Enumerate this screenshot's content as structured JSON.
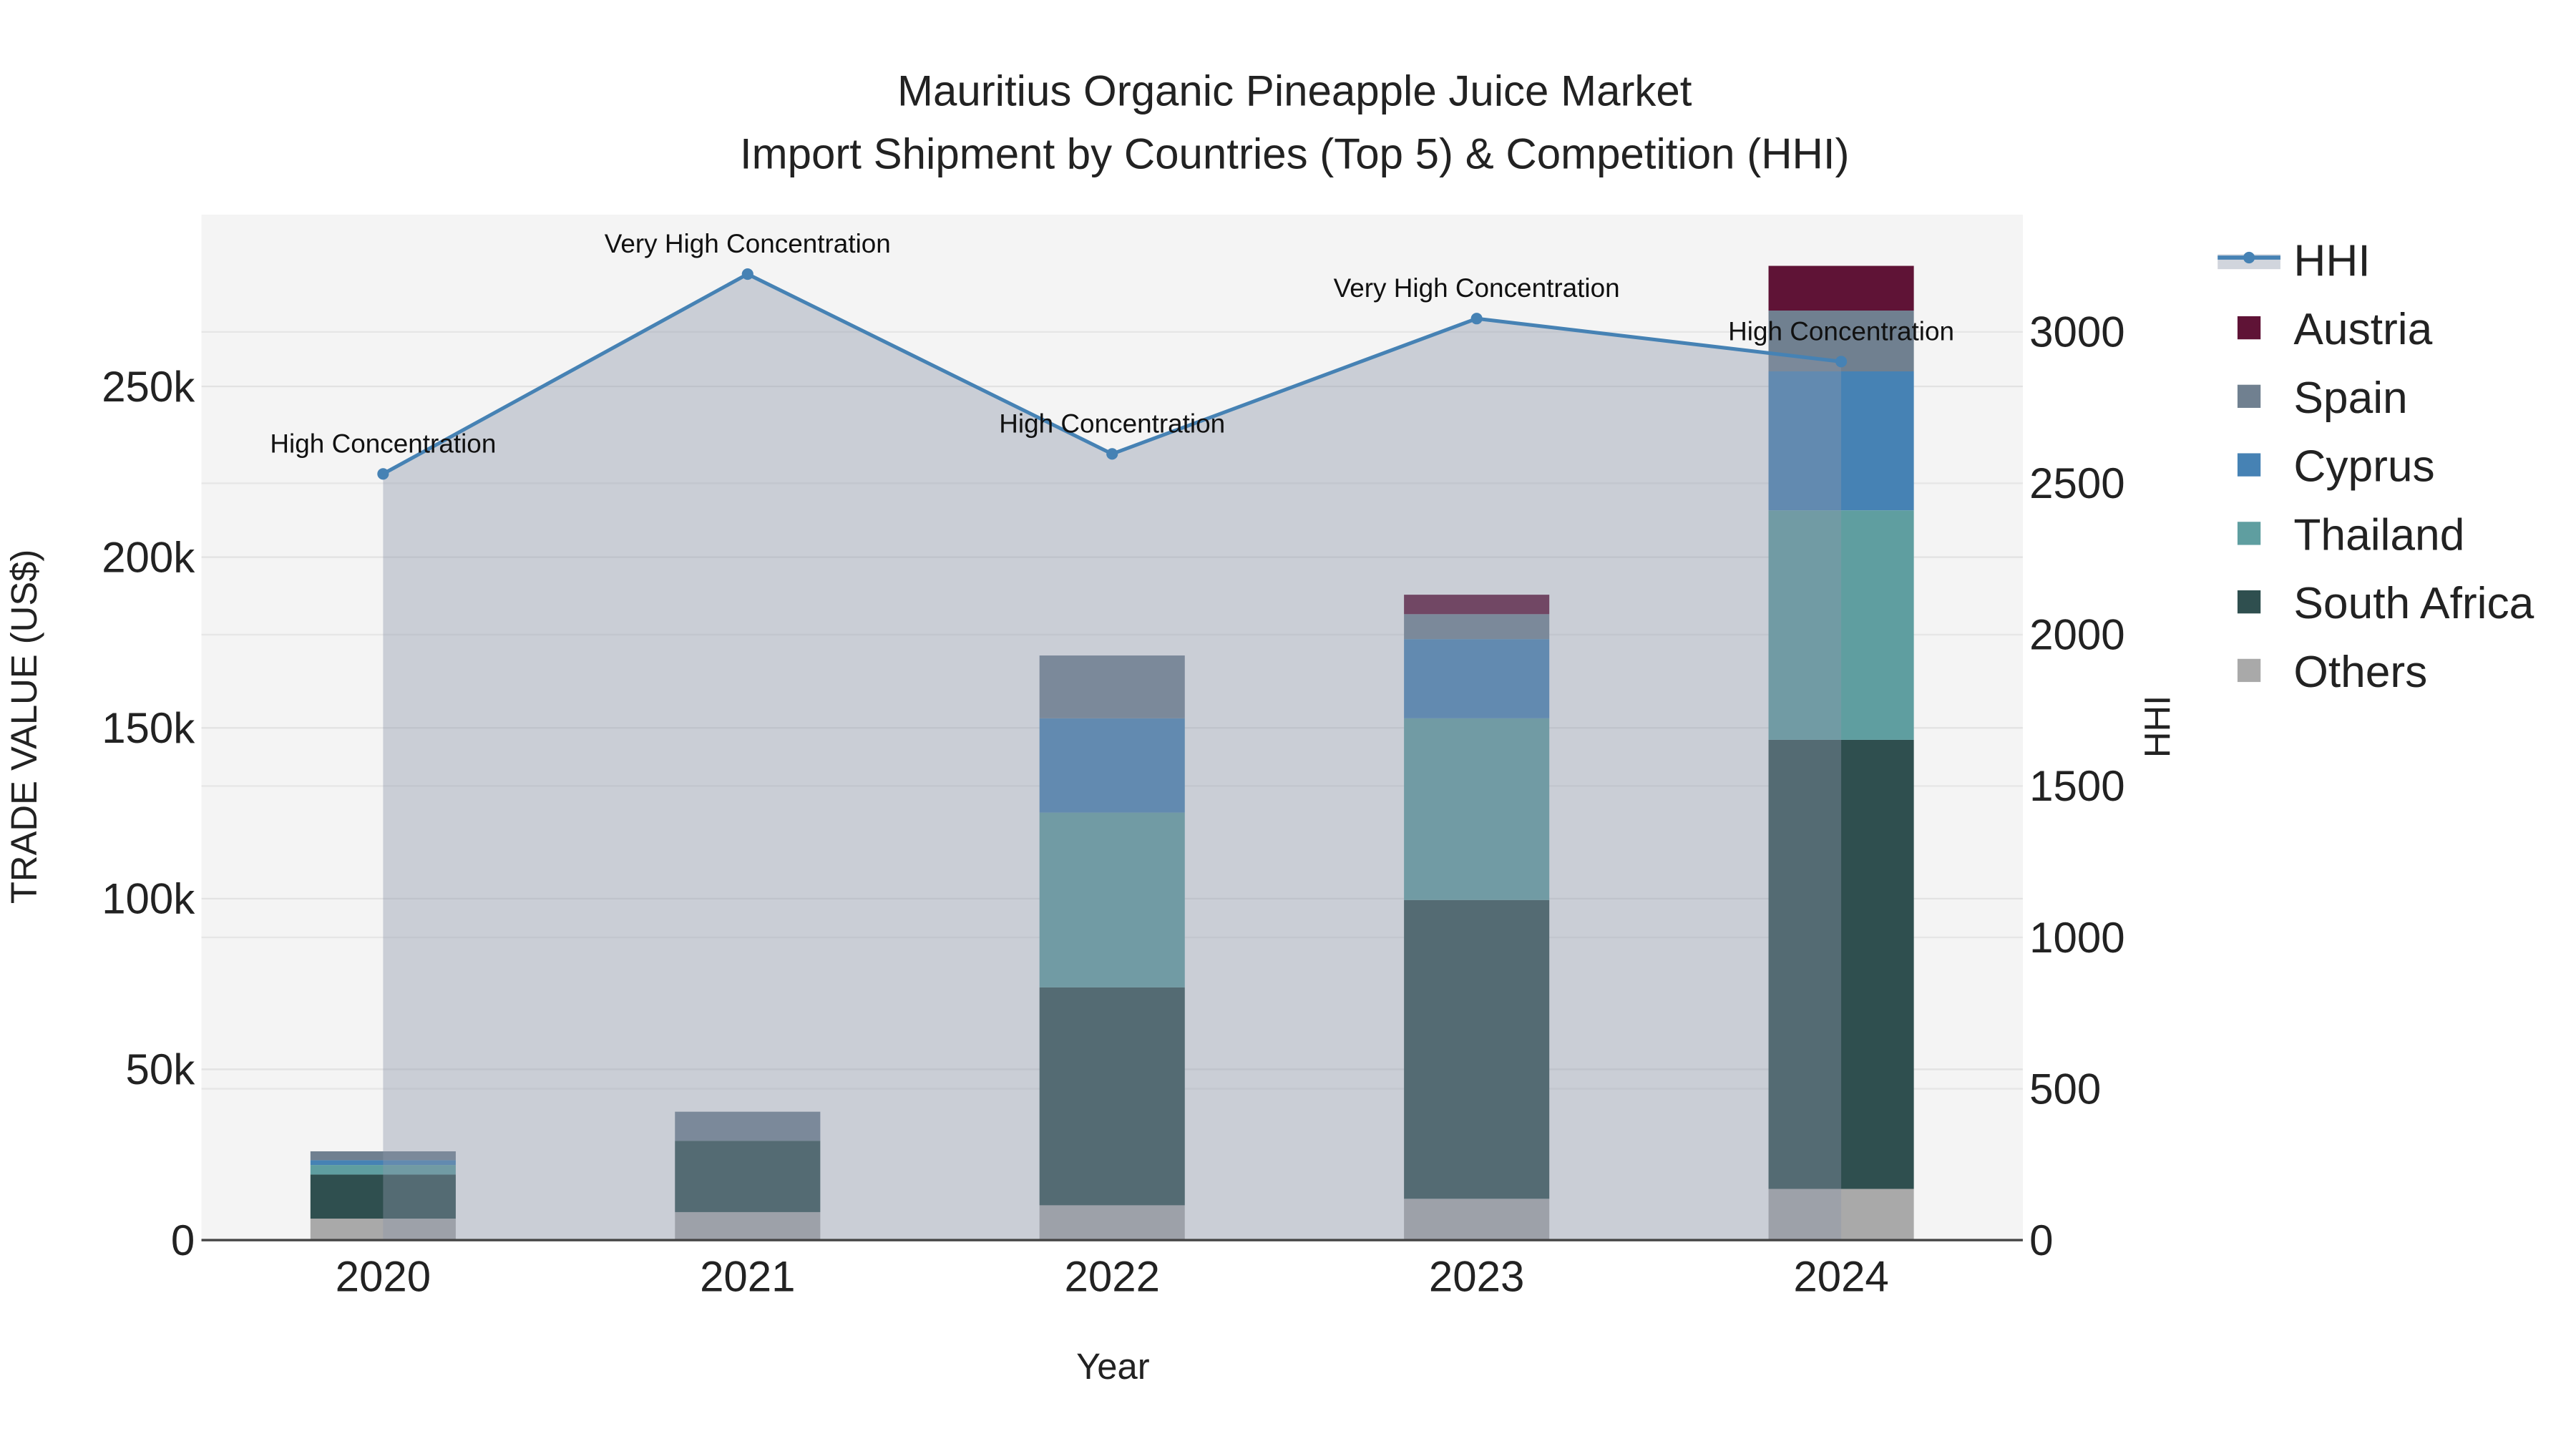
{
  "chart_data": {
    "type": "bar",
    "title_line1": "Mauritius Organic Pineapple Juice Market",
    "title_line2": "Import Shipment by Countries (Top 5) & Competition (HHI)",
    "xlabel": "Year",
    "ylabel": "TRADE VALUE (US$)",
    "y2label": "HHI",
    "categories": [
      "2020",
      "2021",
      "2022",
      "2023",
      "2024"
    ],
    "ylim": [
      0,
      300000
    ],
    "y2lim": [
      0,
      3380
    ],
    "yticks": [
      0,
      50000,
      100000,
      150000,
      200000,
      250000
    ],
    "ytick_labels": [
      "0",
      "50k",
      "100k",
      "150k",
      "200k",
      "250k"
    ],
    "y2ticks": [
      0,
      500,
      1000,
      1500,
      2000,
      2500,
      3000
    ],
    "y2tick_labels": [
      "0",
      "500",
      "1000",
      "1500",
      "2000",
      "2500",
      "3000"
    ],
    "stacked": true,
    "series": [
      {
        "name": "Others",
        "color": "#a9a9a9",
        "values": [
          6300,
          8200,
          10200,
          12100,
          15000
        ]
      },
      {
        "name": "South Africa",
        "color": "#2f4f4f",
        "values": [
          12900,
          20900,
          63800,
          87500,
          131500
        ]
      },
      {
        "name": "Thailand",
        "color": "#5f9ea0",
        "values": [
          2800,
          0,
          51200,
          53200,
          67200
        ]
      },
      {
        "name": "Cyprus",
        "color": "#4682b4",
        "values": [
          1400,
          0,
          27600,
          23200,
          40700
        ]
      },
      {
        "name": "Spain",
        "color": "#708090",
        "values": [
          2600,
          8500,
          18400,
          7300,
          17800
        ]
      },
      {
        "name": "Austria",
        "color": "#5f1336",
        "values": [
          0,
          0,
          0,
          5700,
          13100
        ]
      }
    ],
    "hhi": {
      "name": "HHI",
      "color": "#4682b4",
      "values": [
        2531,
        3191,
        2597,
        3044,
        2902
      ],
      "annotations": [
        "High Concentration",
        "Very High Concentration",
        "High Concentration",
        "Very High Concentration",
        "High Concentration"
      ]
    },
    "legend_order": [
      "HHI",
      "Austria",
      "Spain",
      "Cyprus",
      "Thailand",
      "South Africa",
      "Others"
    ],
    "legend_placement": "right",
    "grid": true
  }
}
